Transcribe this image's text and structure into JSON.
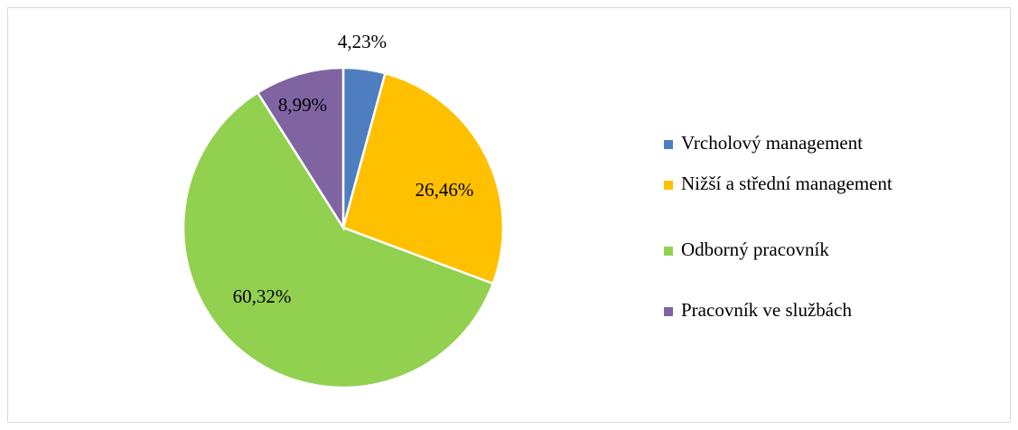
{
  "chart_data": {
    "type": "pie",
    "categories": [
      "Vrcholový management",
      "Nižší a střední management",
      "Odborný pracovník",
      "Pracovník ve službách"
    ],
    "values": [
      4.23,
      26.46,
      60.32,
      8.99
    ],
    "value_labels": [
      "4,23%",
      "26,46%",
      "60,32%",
      "8,99%"
    ],
    "colors": [
      "#4e7ec0",
      "#ffc000",
      "#92d050",
      "#8064a2"
    ],
    "legend": "right"
  }
}
